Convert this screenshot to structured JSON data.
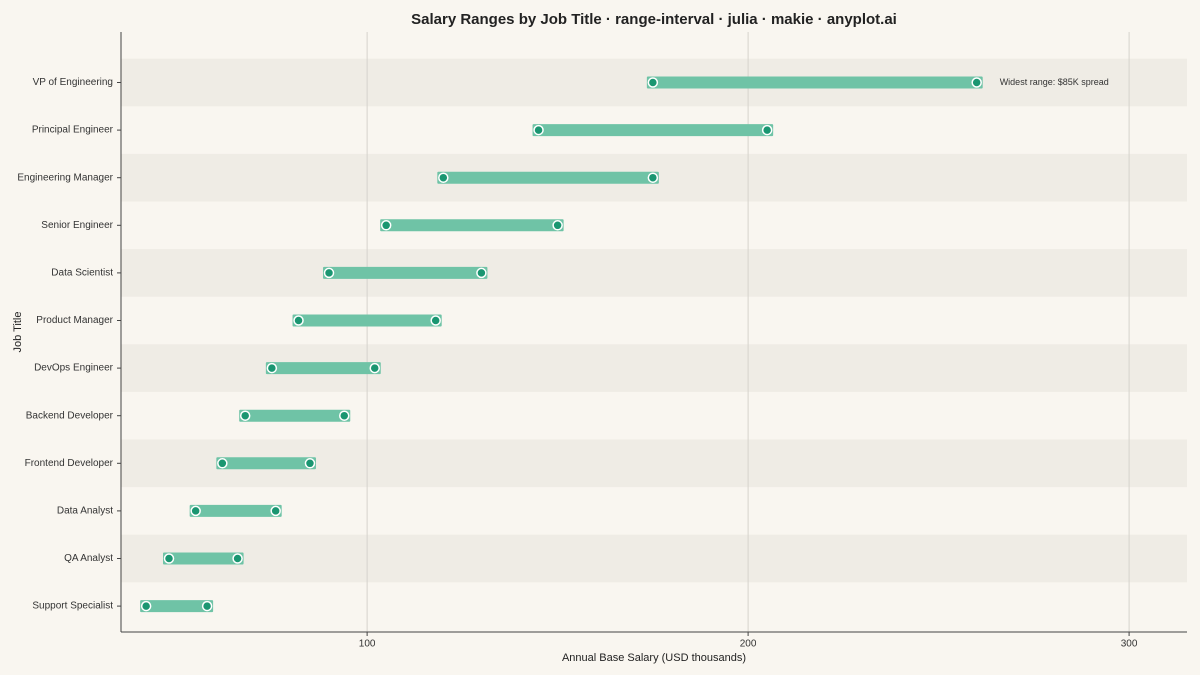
{
  "chart_data": {
    "type": "range",
    "title": "Salary Ranges by Job Title · range-interval · julia · makie · anyplot.ai",
    "x_label": "Annual Base Salary (USD thousands)",
    "y_label": "Job Title",
    "categories": [
      "VP of Engineering",
      "Principal Engineer",
      "Engineering Manager",
      "Senior Engineer",
      "Data Scientist",
      "Product Manager",
      "DevOps Engineer",
      "Backend Developer",
      "Frontend Developer",
      "Data Analyst",
      "QA Analyst",
      "Support Specialist"
    ],
    "low": [
      175,
      145,
      120,
      105,
      90,
      82,
      75,
      68,
      62,
      55,
      48,
      42
    ],
    "high": [
      260,
      205,
      175,
      150,
      130,
      118,
      102,
      94,
      85,
      76,
      66,
      58
    ],
    "color": "#6fc3a6",
    "point_color": "#1a9671",
    "xlim": [
      35.4,
      315.2
    ],
    "xticks": [
      100,
      200,
      300
    ],
    "grid": true,
    "annotation": {
      "text": "Widest range: $85K spread",
      "category": "VP of Engineering"
    }
  }
}
